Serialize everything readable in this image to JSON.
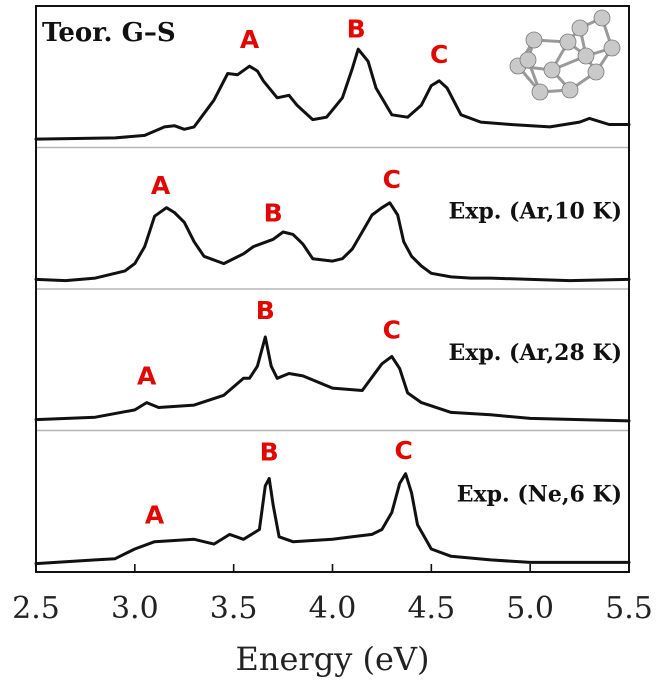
{
  "chart_data": {
    "type": "line",
    "xlabel": "Energy (eV)",
    "xlim": [
      2.5,
      5.5
    ],
    "x_ticks": [
      "2.5",
      "3.0",
      "3.5",
      "4.0",
      "4.5",
      "5.0",
      "5.5"
    ],
    "ylabel": "",
    "grid": false,
    "panels": [
      {
        "label": "Teor. G–S",
        "has_cluster_image": true,
        "peaks": [
          {
            "name": "A",
            "x": 3.58
          },
          {
            "name": "B",
            "x": 4.12
          },
          {
            "name": "C",
            "x": 4.54
          }
        ],
        "series": [
          {
            "x": [
              2.5,
              2.9,
              3.05,
              3.15,
              3.2,
              3.25,
              3.3,
              3.4,
              3.47,
              3.52,
              3.58,
              3.62,
              3.65,
              3.72,
              3.78,
              3.82,
              3.9,
              3.97,
              4.05,
              4.1,
              4.13,
              4.18,
              4.22,
              4.3,
              4.38,
              4.45,
              4.5,
              4.54,
              4.58,
              4.65,
              4.75,
              4.9,
              5.1,
              5.25,
              5.3,
              5.4,
              5.5
            ],
            "y": [
              0.02,
              0.03,
              0.05,
              0.12,
              0.13,
              0.1,
              0.12,
              0.34,
              0.56,
              0.55,
              0.62,
              0.58,
              0.5,
              0.36,
              0.38,
              0.3,
              0.18,
              0.2,
              0.36,
              0.6,
              0.76,
              0.66,
              0.44,
              0.22,
              0.2,
              0.3,
              0.46,
              0.5,
              0.44,
              0.22,
              0.16,
              0.14,
              0.12,
              0.16,
              0.19,
              0.14,
              0.14
            ]
          }
        ]
      },
      {
        "label": "Exp. (Ar,10 K)",
        "has_cluster_image": false,
        "peaks": [
          {
            "name": "A",
            "x": 3.13
          },
          {
            "name": "B",
            "x": 3.7
          },
          {
            "name": "C",
            "x": 4.3
          }
        ],
        "series": [
          {
            "x": [
              2.5,
              2.65,
              2.8,
              2.9,
              2.95,
              3.0,
              3.05,
              3.1,
              3.16,
              3.2,
              3.25,
              3.3,
              3.35,
              3.45,
              3.55,
              3.6,
              3.7,
              3.75,
              3.8,
              3.85,
              3.9,
              4.0,
              4.05,
              4.1,
              4.15,
              4.2,
              4.25,
              4.29,
              4.33,
              4.36,
              4.4,
              4.45,
              4.5,
              4.6,
              4.7,
              4.8,
              5.0,
              5.2,
              5.5
            ],
            "y": [
              0.03,
              0.02,
              0.04,
              0.08,
              0.1,
              0.16,
              0.3,
              0.55,
              0.62,
              0.58,
              0.5,
              0.34,
              0.22,
              0.16,
              0.24,
              0.3,
              0.36,
              0.42,
              0.4,
              0.32,
              0.2,
              0.18,
              0.2,
              0.28,
              0.42,
              0.56,
              0.62,
              0.66,
              0.56,
              0.34,
              0.22,
              0.14,
              0.08,
              0.05,
              0.04,
              0.04,
              0.03,
              0.02,
              0.03
            ]
          }
        ]
      },
      {
        "label": "Exp. (Ar,28 K)",
        "has_cluster_image": false,
        "peaks": [
          {
            "name": "A",
            "x": 3.06
          },
          {
            "name": "B",
            "x": 3.66
          },
          {
            "name": "C",
            "x": 4.3
          }
        ],
        "series": [
          {
            "x": [
              2.5,
              2.8,
              3.0,
              3.06,
              3.12,
              3.3,
              3.45,
              3.55,
              3.58,
              3.62,
              3.66,
              3.69,
              3.72,
              3.78,
              3.85,
              4.0,
              4.15,
              4.25,
              4.3,
              4.34,
              4.38,
              4.45,
              4.6,
              4.8,
              5.0,
              5.5
            ],
            "y": [
              0.04,
              0.06,
              0.12,
              0.18,
              0.14,
              0.16,
              0.24,
              0.38,
              0.38,
              0.48,
              0.72,
              0.48,
              0.38,
              0.42,
              0.4,
              0.3,
              0.28,
              0.5,
              0.56,
              0.46,
              0.26,
              0.18,
              0.1,
              0.08,
              0.05,
              0.03
            ]
          }
        ]
      },
      {
        "label": "Exp. (Ne,6 K)",
        "has_cluster_image": false,
        "peaks": [
          {
            "name": "A",
            "x": 3.1
          },
          {
            "name": "B",
            "x": 3.68
          },
          {
            "name": "C",
            "x": 4.36
          }
        ],
        "series": [
          {
            "x": [
              2.5,
              2.8,
              2.9,
              3.0,
              3.1,
              3.2,
              3.3,
              3.4,
              3.48,
              3.55,
              3.63,
              3.66,
              3.68,
              3.7,
              3.73,
              3.8,
              4.0,
              4.1,
              4.2,
              4.25,
              4.3,
              4.34,
              4.37,
              4.4,
              4.43,
              4.5,
              4.6,
              4.8,
              5.0,
              5.5
            ],
            "y": [
              0.02,
              0.05,
              0.06,
              0.14,
              0.2,
              0.21,
              0.22,
              0.18,
              0.26,
              0.22,
              0.3,
              0.66,
              0.72,
              0.5,
              0.24,
              0.2,
              0.22,
              0.24,
              0.26,
              0.3,
              0.44,
              0.68,
              0.76,
              0.6,
              0.34,
              0.14,
              0.08,
              0.05,
              0.03,
              0.03
            ]
          }
        ]
      }
    ]
  }
}
